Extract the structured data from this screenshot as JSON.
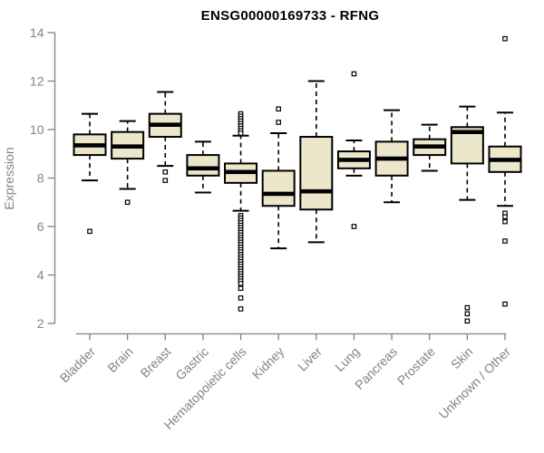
{
  "title": "ENSG00000169733 - RFNG",
  "chart_data": {
    "type": "box",
    "title": "ENSG00000169733 - RFNG",
    "xlabel": "",
    "ylabel": "Expression",
    "ylim": [
      2,
      14
    ],
    "yticks": [
      2,
      4,
      6,
      8,
      10,
      12,
      14
    ],
    "grid": false,
    "legend": null,
    "categories": [
      "Bladder",
      "Brain",
      "Breast",
      "Gastric",
      "Hematopoietic cells",
      "Kidney",
      "Liver",
      "Lung",
      "Pancreas",
      "Prostate",
      "Skin",
      "Unknown / Other"
    ],
    "boxes": [
      {
        "category": "Bladder",
        "whisker_low": 7.9,
        "q1": 8.95,
        "median": 9.35,
        "q3": 9.8,
        "whisker_high": 10.65,
        "outliers": [
          5.8
        ]
      },
      {
        "category": "Brain",
        "whisker_low": 7.55,
        "q1": 8.8,
        "median": 9.3,
        "q3": 9.9,
        "whisker_high": 10.35,
        "outliers": [
          7.0
        ]
      },
      {
        "category": "Breast",
        "whisker_low": 8.5,
        "q1": 9.7,
        "median": 10.2,
        "q3": 10.65,
        "whisker_high": 11.55,
        "outliers": [
          8.25,
          7.9
        ]
      },
      {
        "category": "Gastric",
        "whisker_low": 7.4,
        "q1": 8.1,
        "median": 8.4,
        "q3": 8.95,
        "whisker_high": 9.5,
        "outliers": []
      },
      {
        "category": "Hematopoietic cells",
        "whisker_low": 6.65,
        "q1": 7.8,
        "median": 8.25,
        "q3": 8.6,
        "whisker_high": 9.75,
        "outliers": [
          10.65,
          10.55,
          10.45,
          10.35,
          10.25,
          10.15,
          10.05,
          9.95,
          9.85,
          6.45,
          6.35,
          6.25,
          6.15,
          6.05,
          5.95,
          5.85,
          5.75,
          5.65,
          5.55,
          5.45,
          5.35,
          5.25,
          5.15,
          5.05,
          4.95,
          4.85,
          4.75,
          4.65,
          4.55,
          4.45,
          4.35,
          4.25,
          4.15,
          4.05,
          3.95,
          3.85,
          3.75,
          3.65,
          3.45,
          3.05,
          2.6
        ]
      },
      {
        "category": "Kidney",
        "whisker_low": 5.1,
        "q1": 6.85,
        "median": 7.35,
        "q3": 8.3,
        "whisker_high": 9.85,
        "outliers": [
          10.85,
          10.3
        ]
      },
      {
        "category": "Liver",
        "whisker_low": 5.35,
        "q1": 6.7,
        "median": 7.45,
        "q3": 9.7,
        "whisker_high": 12.0,
        "outliers": []
      },
      {
        "category": "Lung",
        "whisker_low": 8.1,
        "q1": 8.4,
        "median": 8.75,
        "q3": 9.1,
        "whisker_high": 9.55,
        "outliers": [
          12.3,
          6.0
        ]
      },
      {
        "category": "Pancreas",
        "whisker_low": 7.0,
        "q1": 8.1,
        "median": 8.8,
        "q3": 9.5,
        "whisker_high": 10.8,
        "outliers": []
      },
      {
        "category": "Prostate",
        "whisker_low": 8.3,
        "q1": 8.95,
        "median": 9.3,
        "q3": 9.6,
        "whisker_high": 10.2,
        "outliers": []
      },
      {
        "category": "Skin",
        "whisker_low": 7.1,
        "q1": 8.6,
        "median": 9.9,
        "q3": 10.1,
        "whisker_high": 10.95,
        "outliers": [
          2.65,
          2.4,
          2.1
        ]
      },
      {
        "category": "Unknown / Other",
        "whisker_low": 6.85,
        "q1": 8.25,
        "median": 8.75,
        "q3": 9.3,
        "whisker_high": 10.7,
        "outliers": [
          13.75,
          6.55,
          6.4,
          6.2,
          5.4,
          2.8
        ]
      }
    ]
  },
  "style": {
    "background": "#ffffff",
    "box_fill": "#ece7ca",
    "box_stroke": "#000000",
    "median_color": "#000000",
    "whisker_color": "#000000",
    "outlier_fill": "#ffffff",
    "axis_color": "#808080",
    "tick_label_color": "#838383",
    "title_color": "#000000"
  }
}
